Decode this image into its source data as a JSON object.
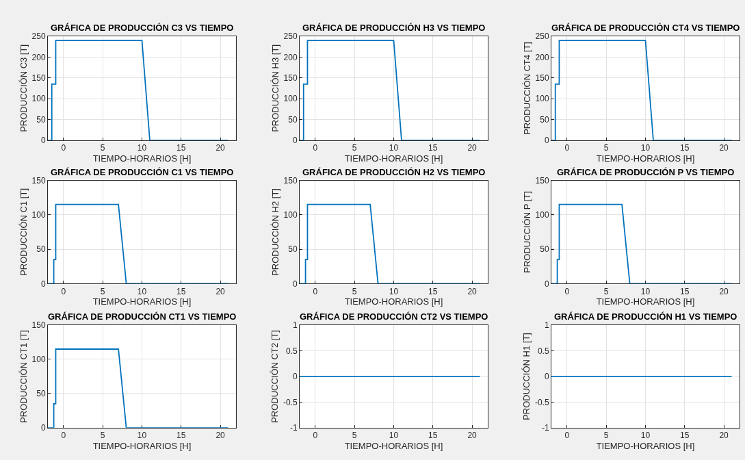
{
  "chart_data": [
    {
      "type": "line",
      "title": "GRÁFICA DE PRODUCCIÓN C3 VS TIEMPO",
      "xlabel": "TIEMPO-HORARIOS [H]",
      "ylabel": "PRODUCCIÓN C3 [T]",
      "x": [
        -2,
        -1.5,
        -1.5,
        -1,
        -1,
        10,
        11,
        21
      ],
      "series": [
        {
          "color": "#0072bd",
          "values": [
            0,
            0,
            135,
            135,
            240,
            240,
            0,
            0
          ]
        }
      ],
      "xlim": [
        -2,
        22
      ],
      "xticks": [
        0,
        5,
        10,
        15,
        20
      ],
      "ylim": [
        0,
        250
      ],
      "yticks": [
        0,
        50,
        100,
        150,
        200,
        250
      ],
      "grid": true
    },
    {
      "type": "line",
      "title": "GRÁFICA DE PRODUCCIÓN H3 VS TIEMPO",
      "xlabel": "TIEMPO-HORARIOS [H]",
      "ylabel": "PRODUCCIÓN H3 [T]",
      "x": [
        -2,
        -1.5,
        -1.5,
        -1,
        -1,
        10,
        11,
        21
      ],
      "series": [
        {
          "color": "#0072bd",
          "values": [
            0,
            0,
            135,
            135,
            240,
            240,
            0,
            0
          ]
        }
      ],
      "xlim": [
        -2,
        22
      ],
      "xticks": [
        0,
        5,
        10,
        15,
        20
      ],
      "ylim": [
        0,
        250
      ],
      "yticks": [
        0,
        50,
        100,
        150,
        200,
        250
      ],
      "grid": true
    },
    {
      "type": "line",
      "title": "GRÁFICA DE PRODUCCIÓN CT4 VS TIEMPO",
      "xlabel": "TIEMPO-HORARIOS [H]",
      "ylabel": "PRODUCCIÓN CT4 [T]",
      "x": [
        -2,
        -1.5,
        -1.5,
        -1,
        -1,
        10,
        11,
        21
      ],
      "series": [
        {
          "color": "#0072bd",
          "values": [
            0,
            0,
            135,
            135,
            240,
            240,
            0,
            0
          ]
        }
      ],
      "xlim": [
        -2,
        22
      ],
      "xticks": [
        0,
        5,
        10,
        15,
        20
      ],
      "ylim": [
        0,
        250
      ],
      "yticks": [
        0,
        50,
        100,
        150,
        200,
        250
      ],
      "grid": true
    },
    {
      "type": "line",
      "title": "GRÁFICA DE PRODUCCIÓN C1 VS TIEMPO",
      "xlabel": "TIEMPO-HORARIOS [H]",
      "ylabel": "PRODUCCIÓN C1 [T]",
      "x": [
        -2,
        -1.25,
        -1.25,
        -1,
        -1,
        7,
        8,
        21
      ],
      "series": [
        {
          "color": "#0072bd",
          "values": [
            0,
            0,
            35,
            35,
            115,
            115,
            0,
            0
          ]
        }
      ],
      "xlim": [
        -2,
        22
      ],
      "xticks": [
        0,
        5,
        10,
        15,
        20
      ],
      "ylim": [
        0,
        150
      ],
      "yticks": [
        0,
        50,
        100,
        150
      ],
      "grid": true
    },
    {
      "type": "line",
      "title": "GRÁFICA DE PRODUCCIÓN H2 VS TIEMPO",
      "xlabel": "TIEMPO-HORARIOS [H]",
      "ylabel": "PRODUCCIÓN H2 [T]",
      "x": [
        -2,
        -1.25,
        -1.25,
        -1,
        -1,
        7,
        8,
        21
      ],
      "series": [
        {
          "color": "#0072bd",
          "values": [
            0,
            0,
            35,
            35,
            115,
            115,
            0,
            0
          ]
        }
      ],
      "xlim": [
        -2,
        22
      ],
      "xticks": [
        0,
        5,
        10,
        15,
        20
      ],
      "ylim": [
        0,
        150
      ],
      "yticks": [
        0,
        50,
        100,
        150
      ],
      "grid": true
    },
    {
      "type": "line",
      "title": "GRÁFICA DE PRODUCCIÓN P VS TIEMPO",
      "xlabel": "TIEMPO-HORARIOS [H]",
      "ylabel": "PRODUCCIÓN P [T]",
      "x": [
        -2,
        -1.25,
        -1.25,
        -1,
        -1,
        7,
        8,
        21
      ],
      "series": [
        {
          "color": "#0072bd",
          "values": [
            0,
            0,
            35,
            35,
            115,
            115,
            0,
            0
          ]
        }
      ],
      "xlim": [
        -2,
        22
      ],
      "xticks": [
        0,
        5,
        10,
        15,
        20
      ],
      "ylim": [
        0,
        150
      ],
      "yticks": [
        0,
        50,
        100,
        150
      ],
      "grid": true
    },
    {
      "type": "line",
      "title": "GRÁFICA DE PRODUCCIÓN CT1 VS TIEMPO",
      "xlabel": "TIEMPO-HORARIOS [H]",
      "ylabel": "PRODUCCIÓN CT1 [T]",
      "x": [
        -2,
        -1.25,
        -1.25,
        -1,
        -1,
        7,
        8,
        21
      ],
      "series": [
        {
          "color": "#0072bd",
          "values": [
            0,
            0,
            35,
            35,
            115,
            115,
            0,
            0
          ]
        }
      ],
      "xlim": [
        -2,
        22
      ],
      "xticks": [
        0,
        5,
        10,
        15,
        20
      ],
      "ylim": [
        0,
        150
      ],
      "yticks": [
        0,
        50,
        100,
        150
      ],
      "grid": true
    },
    {
      "type": "line",
      "title": "GRÁFICA DE PRODUCCIÓN CT2 VS TIEMPO",
      "xlabel": "TIEMPO-HORARIOS [H]",
      "ylabel": "PRODUCCIÓN CT2 [T]",
      "x": [
        -2,
        21
      ],
      "series": [
        {
          "color": "#0072bd",
          "values": [
            0,
            0
          ]
        }
      ],
      "xlim": [
        -2,
        22
      ],
      "xticks": [
        0,
        5,
        10,
        15,
        20
      ],
      "ylim": [
        -1,
        1
      ],
      "yticks": [
        -1,
        -0.5,
        0,
        0.5,
        1
      ],
      "grid": true
    },
    {
      "type": "line",
      "title": "GRÁFICA DE PRODUCCIÓN H1 VS TIEMPO",
      "xlabel": "TIEMPO-HORARIOS [H]",
      "ylabel": "PRODUCCIÓN H1 [T]",
      "x": [
        -2,
        21
      ],
      "series": [
        {
          "color": "#0072bd",
          "values": [
            0,
            0
          ]
        }
      ],
      "xlim": [
        -2,
        22
      ],
      "xticks": [
        0,
        5,
        10,
        15,
        20
      ],
      "ylim": [
        -1,
        1
      ],
      "yticks": [
        -1,
        -0.5,
        0,
        0.5,
        1
      ],
      "grid": true
    }
  ]
}
